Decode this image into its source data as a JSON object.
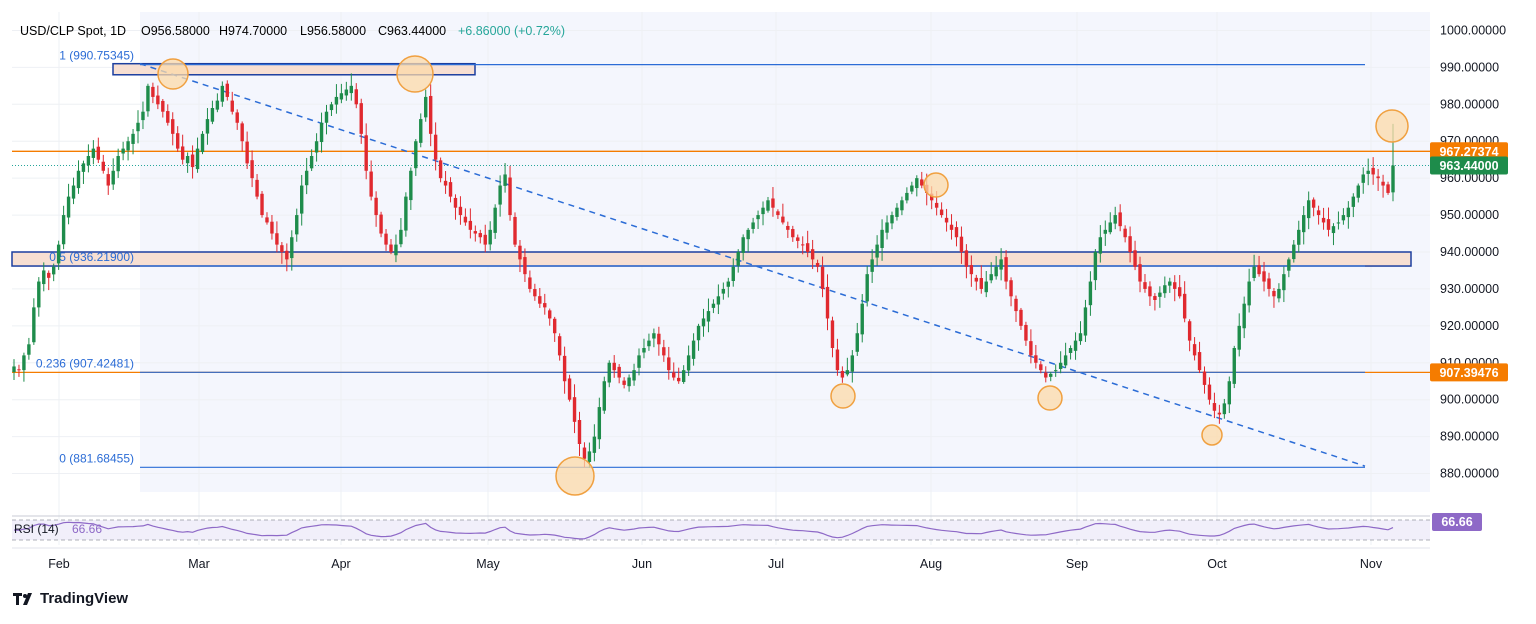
{
  "header": {
    "symbol": "USD/CLP Spot, 1D",
    "open": "O956.58000",
    "high": "H974.70000",
    "low": "L956.58000",
    "close": "C963.44000",
    "change": "+6.86000 (+0.72%)"
  },
  "branding": {
    "name": "TradingView"
  },
  "colors": {
    "up": "#26a69a",
    "up_body": "#1e8c4b",
    "down": "#e0292f",
    "fib_line": "#2b6cd6",
    "orange": "#f57c00",
    "zone_fill": "#f7dfd2",
    "rsi": "#8e69c7",
    "circle_fill": "#fcd9a8",
    "circle_stroke": "#f0a040"
  },
  "chart_data": {
    "type": "candlestick",
    "title": "USD/CLP Spot, 1D",
    "ylim": [
      875,
      1005
    ],
    "y_ticks": [
      "1000.00000",
      "990.00000",
      "980.00000",
      "970.00000",
      "960.00000",
      "950.00000",
      "940.00000",
      "930.00000",
      "920.00000",
      "910.00000",
      "900.00000",
      "890.00000",
      "880.00000"
    ],
    "x_labels": [
      "Feb",
      "Mar",
      "Apr",
      "May",
      "Jun",
      "Jul",
      "Aug",
      "Sep",
      "Oct",
      "Nov"
    ],
    "fib_levels": [
      {
        "label": "1 (990.75345)",
        "value": 990.75
      },
      {
        "label": "0.5 (936.21900)",
        "value": 936.22
      },
      {
        "label": "0.236 (907.42481)",
        "value": 907.42
      },
      {
        "label": "0 (881.68455)",
        "value": 881.68
      }
    ],
    "zones": [
      {
        "low": 988.0,
        "high": 991.0
      },
      {
        "low": 936.2,
        "high": 940.0
      }
    ],
    "horizontal_lines": [
      {
        "label": "967.27374",
        "value": 967.27,
        "color": "#f57c00"
      },
      {
        "label": "907.39476",
        "value": 907.39,
        "color": "#f57c00"
      }
    ],
    "current_price": {
      "label": "963.44000",
      "value": 963.44
    },
    "trendline": {
      "start_value": 991.0,
      "end_value": 882.0
    },
    "closes": [
      909,
      908,
      912,
      915,
      925,
      932,
      935,
      933,
      936,
      942,
      950,
      955,
      958,
      962,
      964,
      966,
      968,
      965,
      962,
      958,
      962,
      966,
      968,
      970,
      972,
      975,
      978,
      985,
      982,
      980,
      978,
      975,
      972,
      968,
      965,
      966,
      963,
      968,
      972,
      976,
      979,
      981,
      985,
      982,
      978,
      975,
      970,
      964,
      960,
      955,
      950,
      948,
      945,
      942,
      940,
      938,
      944,
      950,
      958,
      962,
      966,
      970,
      975,
      978,
      980,
      982,
      983,
      984,
      985,
      980,
      972,
      962,
      955,
      950,
      945,
      942,
      940,
      942,
      946,
      955,
      962,
      970,
      976,
      982,
      972,
      965,
      960,
      958,
      955,
      952,
      950,
      948,
      946,
      945,
      944,
      942,
      946,
      952,
      958,
      961,
      950,
      942,
      938,
      934,
      930,
      928,
      926,
      925,
      922,
      918,
      912,
      905,
      900,
      894,
      888,
      884,
      886,
      890,
      898,
      905,
      910,
      908,
      906,
      904,
      906,
      908,
      912,
      914,
      916,
      918,
      915,
      912,
      908,
      906,
      905,
      908,
      912,
      916,
      920,
      922,
      924,
      926,
      928,
      930,
      932,
      936,
      940,
      944,
      946,
      948,
      950,
      952,
      954,
      952,
      950,
      948,
      946,
      944,
      943,
      942,
      940,
      938,
      936,
      930,
      922,
      914,
      908,
      906,
      908,
      912,
      918,
      926,
      934,
      938,
      942,
      946,
      948,
      950,
      952,
      954,
      956,
      958,
      960,
      958,
      956,
      954,
      952,
      950,
      948,
      946,
      944,
      940,
      936,
      934,
      932,
      930,
      932,
      934,
      936,
      938,
      932,
      928,
      924,
      920,
      916,
      912,
      910,
      908,
      906,
      907,
      908,
      910,
      912,
      914,
      916,
      918,
      925,
      932,
      940,
      944,
      946,
      948,
      950,
      947,
      944,
      940,
      936,
      932,
      930,
      928,
      927,
      929,
      931,
      932,
      930,
      928,
      922,
      916,
      912,
      908,
      904,
      900,
      897,
      896,
      899,
      905,
      914,
      920,
      926,
      932,
      936,
      934,
      932,
      930,
      928,
      930,
      934,
      938,
      942,
      946,
      950,
      954,
      952,
      950,
      948,
      946,
      947,
      948,
      950,
      952,
      955,
      958,
      961,
      962,
      961,
      960,
      958,
      956,
      963.44
    ],
    "rsi": {
      "label": "RSI (14)",
      "value": "66.66",
      "ylim": [
        0,
        100
      ],
      "bands": [
        70,
        30
      ]
    }
  }
}
